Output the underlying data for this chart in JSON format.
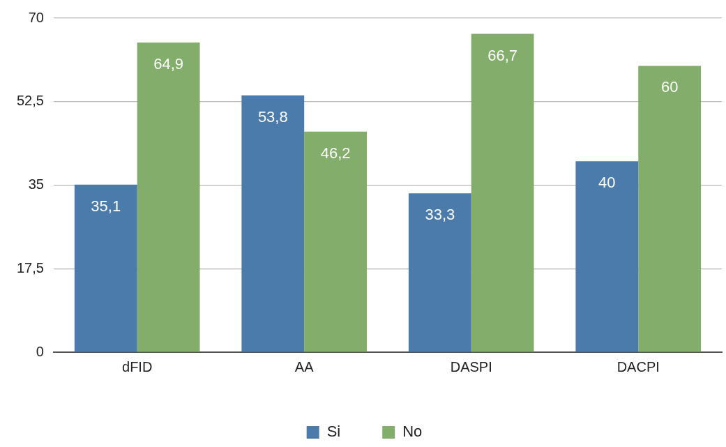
{
  "chart_data": {
    "type": "bar",
    "categories": [
      "dFID",
      "AA",
      "DASPI",
      "DACPI"
    ],
    "series": [
      {
        "name": "Si",
        "color": "#4a7bab",
        "values": [
          35.1,
          53.8,
          33.3,
          40
        ],
        "value_labels": [
          "35,1",
          "53,8",
          "33,3",
          "40"
        ]
      },
      {
        "name": "No",
        "color": "#82ad6b",
        "values": [
          64.9,
          46.2,
          66.7,
          60
        ],
        "value_labels": [
          "64,9",
          "46,2",
          "66,7",
          "60"
        ]
      }
    ],
    "ylim": [
      0,
      70
    ],
    "yticks": [
      0,
      {
        "value": 17.5,
        "label": "17,5"
      },
      35,
      {
        "value": 52.5,
        "label": "52,5"
      },
      70
    ],
    "grid": "y",
    "legend": "bottom"
  }
}
